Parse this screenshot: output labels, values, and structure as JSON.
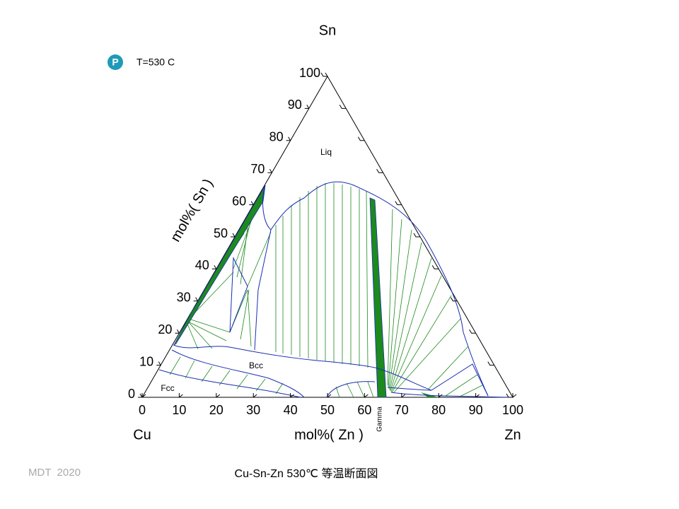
{
  "header": {
    "corner_top": "Sn",
    "temperature": "T=530 C"
  },
  "axes": {
    "left_title": "mol%( Sn )",
    "bottom_title": "mol%( Zn )",
    "corner_left": "Cu",
    "corner_right": "Zn",
    "left_ticks": [
      0,
      10,
      20,
      30,
      40,
      50,
      60,
      70,
      80,
      90,
      100
    ],
    "bottom_ticks": [
      0,
      10,
      20,
      30,
      40,
      50,
      60,
      70,
      80,
      90,
      100
    ]
  },
  "phases": {
    "liq": "Liq",
    "bcc": "Bcc",
    "fcc": "Fcc",
    "gamma": "Gamma"
  },
  "footer": {
    "credit": "MDT  2020",
    "caption": "Cu-Sn-Zn 530℃ 等温断面図"
  }
}
